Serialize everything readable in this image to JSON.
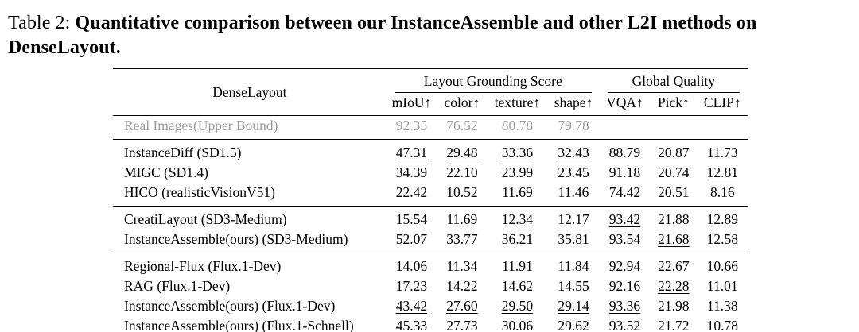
{
  "caption": {
    "label": "Table 2:",
    "text": "Quantitative comparison between our InstanceAssemble and other L2I methods on DenseLayout."
  },
  "table": {
    "corner": "DenseLayout",
    "group_headers": [
      {
        "label": "Layout Grounding Score",
        "span": 4
      },
      {
        "label": "Global Quality",
        "span": 3
      }
    ],
    "columns": [
      "mIoU↑",
      "color↑",
      "texture↑",
      "shape↑",
      "VQA↑",
      "Pick↑",
      "CLIP↑"
    ],
    "sections": [
      {
        "rows": [
          {
            "method": "Real Images(Upper Bound)",
            "bold": false,
            "muted": true,
            "cells": [
              {
                "v": "92.35",
                "f": ""
              },
              {
                "v": "76.52",
                "f": ""
              },
              {
                "v": "80.78",
                "f": ""
              },
              {
                "v": "79.78",
                "f": ""
              },
              {
                "v": "",
                "f": ""
              },
              {
                "v": "",
                "f": ""
              },
              {
                "v": "",
                "f": ""
              }
            ]
          }
        ]
      },
      {
        "rows": [
          {
            "method": "InstanceDiff (SD1.5)",
            "bold": false,
            "muted": false,
            "cells": [
              {
                "v": "47.31",
                "f": "u"
              },
              {
                "v": "29.48",
                "f": "u"
              },
              {
                "v": "33.36",
                "f": "u"
              },
              {
                "v": "32.43",
                "f": "u"
              },
              {
                "v": "88.79",
                "f": ""
              },
              {
                "v": "20.87",
                "f": ""
              },
              {
                "v": "11.73",
                "f": ""
              }
            ]
          },
          {
            "method": "MIGC (SD1.4)",
            "bold": false,
            "muted": false,
            "cells": [
              {
                "v": "34.39",
                "f": ""
              },
              {
                "v": "22.10",
                "f": ""
              },
              {
                "v": "23.99",
                "f": ""
              },
              {
                "v": "23.45",
                "f": ""
              },
              {
                "v": "91.18",
                "f": ""
              },
              {
                "v": "20.74",
                "f": ""
              },
              {
                "v": "12.81",
                "f": "u"
              }
            ]
          },
          {
            "method": "HICO (realisticVisionV51)",
            "bold": false,
            "muted": false,
            "cells": [
              {
                "v": "22.42",
                "f": ""
              },
              {
                "v": "10.52",
                "f": ""
              },
              {
                "v": "11.69",
                "f": ""
              },
              {
                "v": "11.46",
                "f": ""
              },
              {
                "v": "74.42",
                "f": ""
              },
              {
                "v": "20.51",
                "f": ""
              },
              {
                "v": "8.16",
                "f": ""
              }
            ]
          }
        ]
      },
      {
        "rows": [
          {
            "method": "CreatiLayout (SD3-Medium)",
            "bold": false,
            "muted": false,
            "cells": [
              {
                "v": "15.54",
                "f": ""
              },
              {
                "v": "11.69",
                "f": ""
              },
              {
                "v": "12.34",
                "f": ""
              },
              {
                "v": "12.17",
                "f": ""
              },
              {
                "v": "93.42",
                "f": "u"
              },
              {
                "v": "21.88",
                "f": "b"
              },
              {
                "v": "12.89",
                "f": "b"
              }
            ]
          },
          {
            "method": "InstanceAssemble(ours) (SD3-Medium)",
            "bold": true,
            "muted": false,
            "cells": [
              {
                "v": "52.07",
                "f": "b"
              },
              {
                "v": "33.77",
                "f": "b"
              },
              {
                "v": "36.21",
                "f": "b"
              },
              {
                "v": "35.81",
                "f": "b"
              },
              {
                "v": "93.54",
                "f": "b"
              },
              {
                "v": "21.68",
                "f": "u"
              },
              {
                "v": "12.58",
                "f": ""
              }
            ]
          }
        ]
      },
      {
        "rows": [
          {
            "method": "Regional-Flux (Flux.1-Dev)",
            "bold": false,
            "muted": false,
            "cells": [
              {
                "v": "14.06",
                "f": ""
              },
              {
                "v": "11.34",
                "f": ""
              },
              {
                "v": "11.91",
                "f": ""
              },
              {
                "v": "11.84",
                "f": ""
              },
              {
                "v": "92.94",
                "f": ""
              },
              {
                "v": "22.67",
                "f": "b"
              },
              {
                "v": "10.66",
                "f": ""
              }
            ]
          },
          {
            "method": "RAG (Flux.1-Dev)",
            "bold": false,
            "muted": false,
            "cells": [
              {
                "v": "17.23",
                "f": ""
              },
              {
                "v": "14.22",
                "f": ""
              },
              {
                "v": "14.62",
                "f": ""
              },
              {
                "v": "14.55",
                "f": ""
              },
              {
                "v": "92.16",
                "f": ""
              },
              {
                "v": "22.28",
                "f": "u"
              },
              {
                "v": "11.01",
                "f": ""
              }
            ]
          },
          {
            "method": "InstanceAssemble(ours) (Flux.1-Dev)",
            "bold": true,
            "muted": false,
            "cells": [
              {
                "v": "43.42",
                "f": "u"
              },
              {
                "v": "27.60",
                "f": "u"
              },
              {
                "v": "29.50",
                "f": "u"
              },
              {
                "v": "29.14",
                "f": "u"
              },
              {
                "v": "93.36",
                "f": "u"
              },
              {
                "v": "21.98",
                "f": ""
              },
              {
                "v": "11.38",
                "f": "b"
              }
            ]
          },
          {
            "method": "InstanceAssemble(ours) (Flux.1-Schnell)",
            "bold": true,
            "muted": false,
            "cells": [
              {
                "v": "45.33",
                "f": "b"
              },
              {
                "v": "27.73",
                "f": "b"
              },
              {
                "v": "30.06",
                "f": "b"
              },
              {
                "v": "29.62",
                "f": "b"
              },
              {
                "v": "93.52",
                "f": "b"
              },
              {
                "v": "21.72",
                "f": ""
              },
              {
                "v": "10.78",
                "f": "u"
              }
            ]
          }
        ]
      }
    ]
  }
}
